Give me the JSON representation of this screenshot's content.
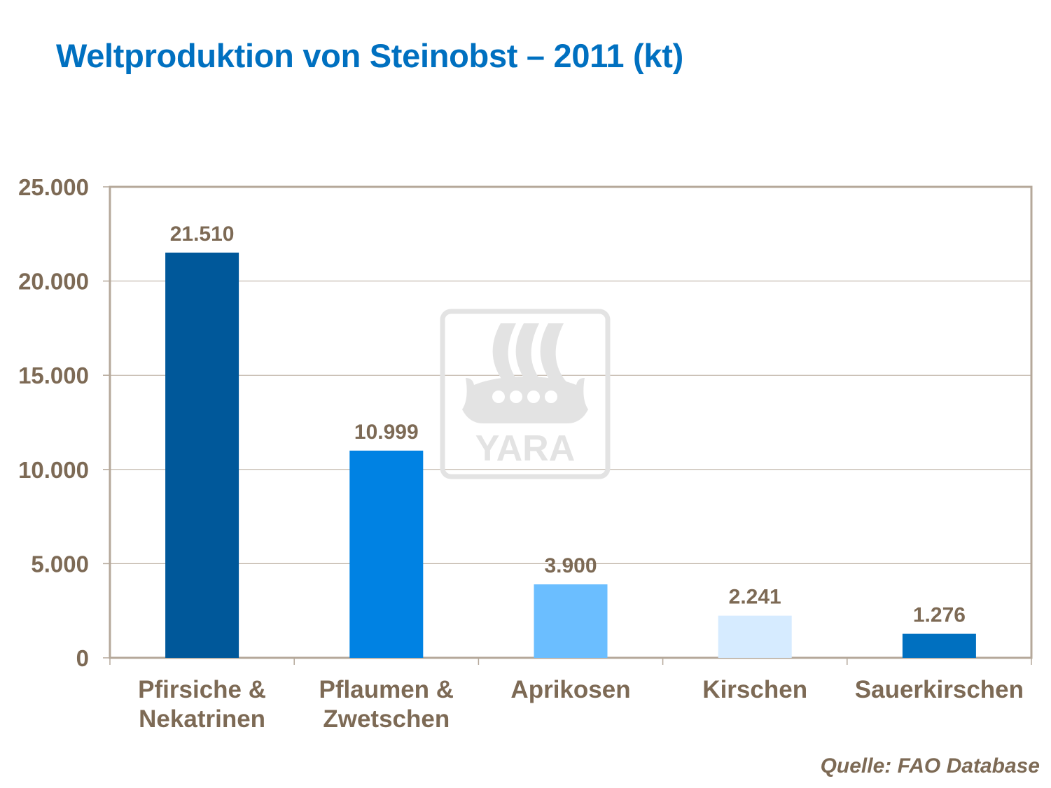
{
  "chart_data": {
    "type": "bar",
    "title": "Weltproduktion von Steinobst – 2011 (kt)",
    "categories": [
      [
        "Pfirsiche &",
        "Nekatrinen"
      ],
      [
        "Pflaumen &",
        "Zwetschen"
      ],
      [
        "Aprikosen"
      ],
      [
        "Kirschen"
      ],
      [
        "Sauerkirschen"
      ]
    ],
    "values": [
      21510,
      10999,
      3900,
      2241,
      1276
    ],
    "data_labels": [
      "21.510",
      "10.999",
      "3.900",
      "2.241",
      "1.276"
    ],
    "bar_colors": [
      "#00589A",
      "#0082E3",
      "#6BBEFF",
      "#D6EBFF",
      "#0070C0"
    ],
    "ylim": [
      0,
      25000
    ],
    "yticks": [
      0,
      5000,
      10000,
      15000,
      20000,
      25000
    ],
    "ytick_labels": [
      "0",
      "5.000",
      "10.000",
      "15.000",
      "20.000",
      "25.000"
    ],
    "grid": true,
    "xlabel": "",
    "ylabel": "",
    "source": "Quelle: FAO Database"
  },
  "watermark": {
    "logo_text": "YARA"
  },
  "colors": {
    "title": "#0070C0",
    "text": "#7D6A55",
    "axis": "#B5A89A"
  }
}
